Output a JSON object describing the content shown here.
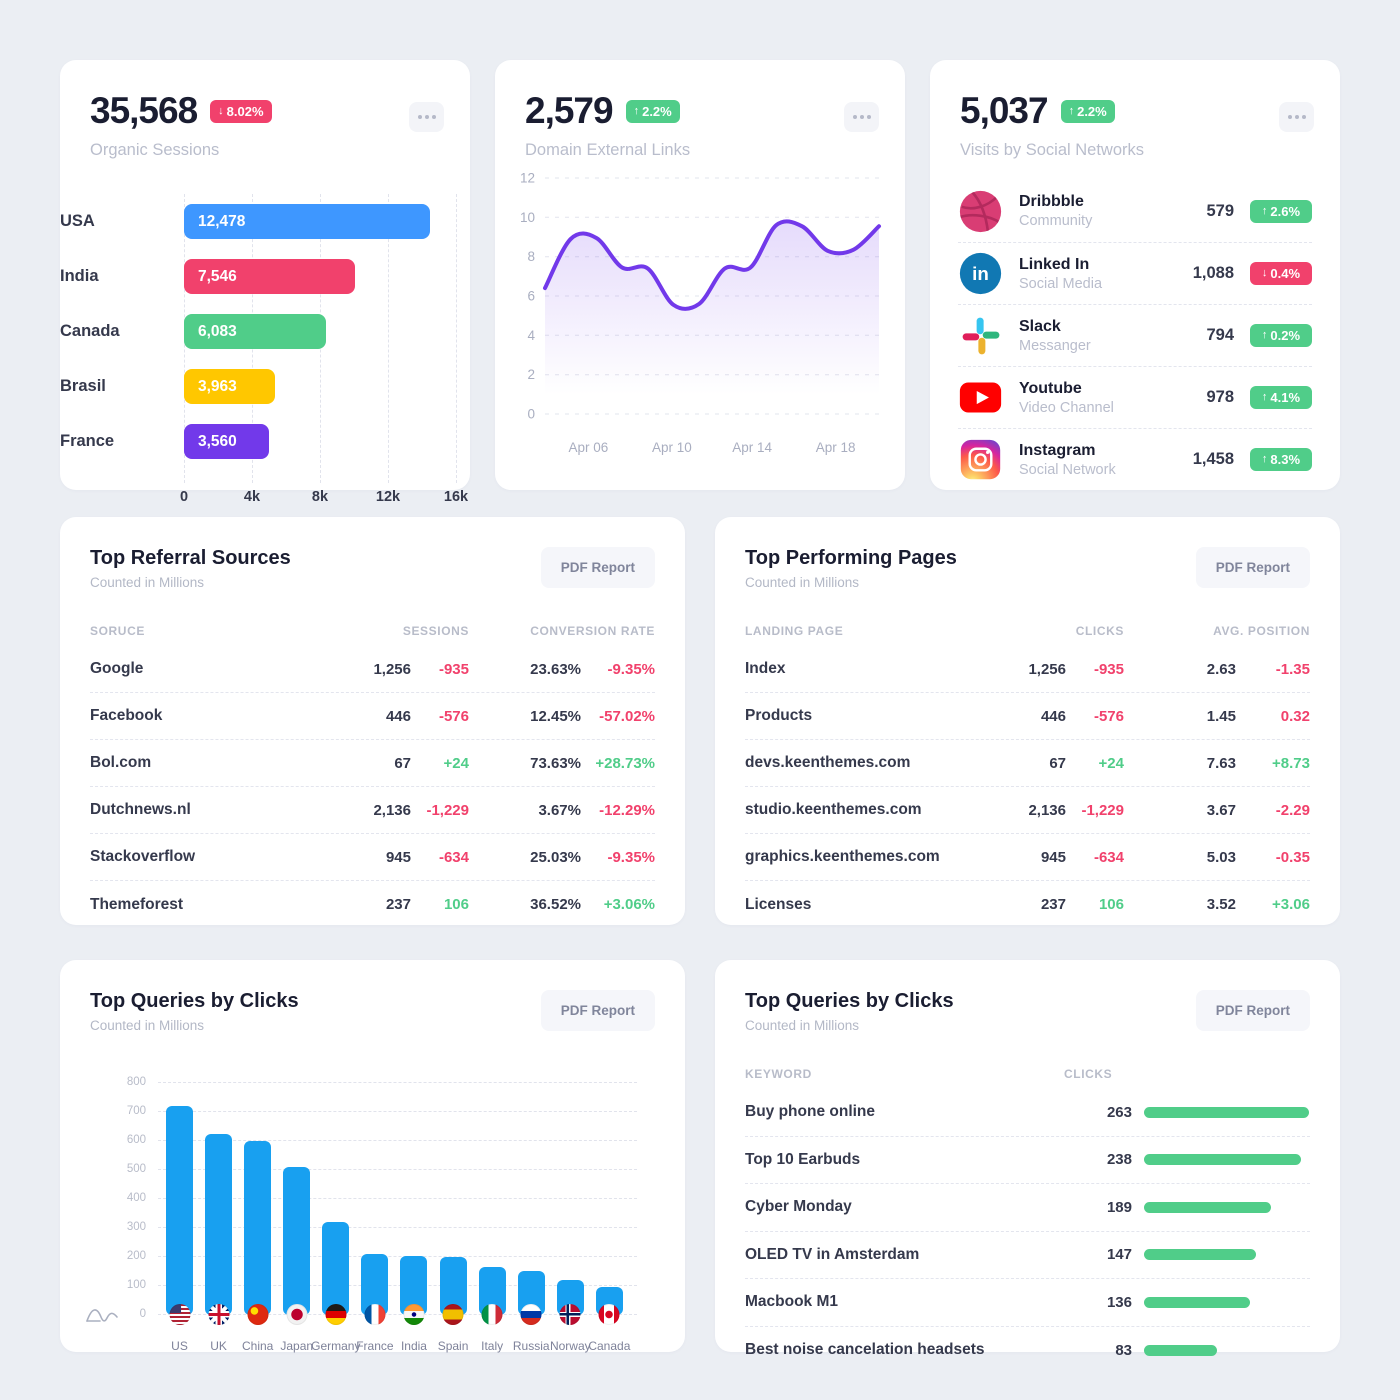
{
  "colors": {
    "primary": "#18a0f0",
    "success": "#50cd89",
    "danger": "#f1416c",
    "warning": "#ffc700",
    "purple": "#7239ea",
    "blue_bar": "#3e97ff"
  },
  "cards": {
    "organic": {
      "value": "35,568",
      "delta": "8.02%",
      "delta_dir": "down",
      "label": "Organic Sessions"
    },
    "domain": {
      "value": "2,579",
      "delta": "2.2%",
      "delta_dir": "up",
      "label": "Domain External Links"
    },
    "social": {
      "value": "5,037",
      "delta": "2.2%",
      "delta_dir": "up",
      "label": "Visits by Social Networks",
      "rows": [
        {
          "icon": "dribbble",
          "name": "Dribbble",
          "desc": "Community",
          "value": "579",
          "delta": "2.6%",
          "dir": "up"
        },
        {
          "icon": "linkedin",
          "name": "Linked In",
          "desc": "Social Media",
          "value": "1,088",
          "delta": "0.4%",
          "dir": "down"
        },
        {
          "icon": "slack",
          "name": "Slack",
          "desc": "Messanger",
          "value": "794",
          "delta": "0.2%",
          "dir": "up"
        },
        {
          "icon": "youtube",
          "name": "Youtube",
          "desc": "Video Channel",
          "value": "978",
          "delta": "4.1%",
          "dir": "up"
        },
        {
          "icon": "instagram",
          "name": "Instagram",
          "desc": "Social Network",
          "value": "1,458",
          "delta": "8.3%",
          "dir": "up"
        }
      ]
    },
    "referral": {
      "title": "Top Referral Sources",
      "subtitle": "Counted in Millions",
      "button": "PDF Report",
      "columns": {
        "c1": "SORUCE",
        "c2": "SESSIONS",
        "c3": "CONVERSION RATE"
      },
      "rows": [
        {
          "name": "Google",
          "v1": "1,256",
          "d1": "-935",
          "d1c": "neg",
          "v2": "23.63%",
          "d2": "-9.35%",
          "d2c": "neg"
        },
        {
          "name": "Facebook",
          "v1": "446",
          "d1": "-576",
          "d1c": "neg",
          "v2": "12.45%",
          "d2": "-57.02%",
          "d2c": "neg"
        },
        {
          "name": "Bol.com",
          "v1": "67",
          "d1": "+24",
          "d1c": "pos",
          "v2": "73.63%",
          "d2": "+28.73%",
          "d2c": "pos"
        },
        {
          "name": "Dutchnews.nl",
          "v1": "2,136",
          "d1": "-1,229",
          "d1c": "neg",
          "v2": "3.67%",
          "d2": "-12.29%",
          "d2c": "neg"
        },
        {
          "name": "Stackoverflow",
          "v1": "945",
          "d1": "-634",
          "d1c": "neg",
          "v2": "25.03%",
          "d2": "-9.35%",
          "d2c": "neg"
        },
        {
          "name": "Themeforest",
          "v1": "237",
          "d1": "106",
          "d1c": "pos",
          "v2": "36.52%",
          "d2": "+3.06%",
          "d2c": "pos"
        }
      ]
    },
    "pages": {
      "title": "Top Performing Pages",
      "subtitle": "Counted in Millions",
      "button": "PDF Report",
      "columns": {
        "c1": "LANDING PAGE",
        "c2": "CLICKS",
        "c3": "AVG. POSITION"
      },
      "rows": [
        {
          "name": "Index",
          "v1": "1,256",
          "d1": "-935",
          "d1c": "neg",
          "v2": "2.63",
          "d2": "-1.35",
          "d2c": "neg"
        },
        {
          "name": "Products",
          "v1": "446",
          "d1": "-576",
          "d1c": "neg",
          "v2": "1.45",
          "d2": "0.32",
          "d2c": "neg"
        },
        {
          "name": "devs.keenthemes.com",
          "v1": "67",
          "d1": "+24",
          "d1c": "pos",
          "v2": "7.63",
          "d2": "+8.73",
          "d2c": "pos"
        },
        {
          "name": "studio.keenthemes.com",
          "v1": "2,136",
          "d1": "-1,229",
          "d1c": "neg",
          "v2": "3.67",
          "d2": "-2.29",
          "d2c": "neg"
        },
        {
          "name": "graphics.keenthemes.com",
          "v1": "945",
          "d1": "-634",
          "d1c": "neg",
          "v2": "5.03",
          "d2": "-0.35",
          "d2c": "neg"
        },
        {
          "name": "Licenses",
          "v1": "237",
          "d1": "106",
          "d1c": "pos",
          "v2": "3.52",
          "d2": "+3.06",
          "d2c": "pos"
        }
      ]
    },
    "queries_chart": {
      "title": "Top Queries by Clicks",
      "subtitle": "Counted in Millions",
      "button": "PDF Report"
    },
    "queries_table": {
      "title": "Top Queries by Clicks",
      "subtitle": "Counted in Millions",
      "button": "PDF Report",
      "columns": {
        "c1": "KEYWORD",
        "c2": "CLICKS"
      },
      "rows": [
        {
          "keyword": "Buy phone online",
          "clicks": "263",
          "bar_pct": 100
        },
        {
          "keyword": "Top 10 Earbuds",
          "clicks": "238",
          "bar_pct": 95
        },
        {
          "keyword": "Cyber Monday",
          "clicks": "189",
          "bar_pct": 77
        },
        {
          "keyword": "OLED TV in Amsterdam",
          "clicks": "147",
          "bar_pct": 68
        },
        {
          "keyword": "Macbook M1",
          "clicks": "136",
          "bar_pct": 64
        },
        {
          "keyword": "Best noise cancelation headsets",
          "clicks": "83",
          "bar_pct": 44
        }
      ]
    }
  },
  "chart_data": [
    {
      "id": "organic-sessions-bars",
      "type": "bar",
      "orientation": "horizontal",
      "title": "Organic Sessions",
      "categories": [
        "USA",
        "India",
        "Canada",
        "Brasil",
        "France"
      ],
      "values": [
        12478,
        7546,
        6083,
        3963,
        3560
      ],
      "value_labels": [
        "12,478",
        "7,546",
        "6,083",
        "3,963",
        "3,560"
      ],
      "bar_colors": [
        "#3e97ff",
        "#f1416c",
        "#50cd89",
        "#ffc700",
        "#7239ea"
      ],
      "bar_visual_pct": [
        90.4,
        62.7,
        52.2,
        33.3,
        31.1
      ],
      "x_ticks": [
        "0",
        "4k",
        "8k",
        "12k",
        "16k"
      ],
      "xlim": [
        0,
        16000
      ],
      "grid": "vertical-dashed"
    },
    {
      "id": "domain-external-links",
      "type": "area",
      "title": "Domain External Links",
      "points": [
        6.4,
        8.9,
        8.95,
        7.45,
        7.4,
        5.55,
        5.6,
        7.4,
        7.45,
        9.6,
        9.55,
        8.3,
        8.35,
        9.55
      ],
      "y_ticks": [
        12,
        10,
        8,
        6,
        4,
        2,
        0
      ],
      "ylim": [
        0,
        12
      ],
      "x_ticks": [
        "Apr 06",
        "Apr 10",
        "Apr 14",
        "Apr 18"
      ],
      "x_tick_pct": [
        13,
        38,
        62,
        87
      ],
      "line_color": "#7239ea",
      "fill": "purple-gradient-fade",
      "grid": "horizontal-dashed"
    },
    {
      "id": "top-queries-by-clicks",
      "type": "bar",
      "orientation": "vertical",
      "title": "Top Queries by Clicks",
      "categories": [
        "US",
        "UK",
        "China",
        "Japan",
        "Germany",
        "France",
        "India",
        "Spain",
        "Italy",
        "Russia",
        "Norway",
        "Canada"
      ],
      "values": [
        720,
        625,
        600,
        510,
        320,
        212,
        205,
        200,
        165,
        152,
        122,
        97
      ],
      "flags": [
        "us",
        "uk",
        "china",
        "japan",
        "germany",
        "france",
        "india",
        "spain",
        "italy",
        "russia",
        "norway",
        "canada"
      ],
      "y_ticks": [
        800,
        700,
        600,
        500,
        400,
        300,
        200,
        100,
        0
      ],
      "ylim": [
        0,
        800
      ],
      "bar_color": "#18a0f0",
      "grid": "horizontal-dashed"
    },
    {
      "id": "keyword-clicks",
      "type": "bar",
      "orientation": "horizontal",
      "title": "Top Queries by Clicks",
      "categories": [
        "Buy phone online",
        "Top 10 Earbuds",
        "Cyber Monday",
        "OLED TV in Amsterdam",
        "Macbook M1",
        "Best noise cancelation headsets"
      ],
      "values": [
        263,
        238,
        189,
        147,
        136,
        83
      ],
      "bar_color": "#50cd89"
    }
  ]
}
